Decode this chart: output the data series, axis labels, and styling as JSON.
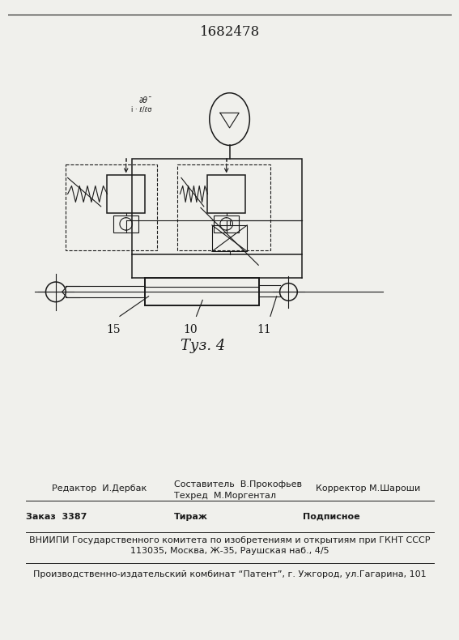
{
  "patent_number": "1682478",
  "editor_line": "Редактор  И.Дербак",
  "composer_line": "Составитель  В.Прокофьев",
  "techred_line": "Техред  М.Моргентал",
  "corrector_line": "Корректор М.Шароши",
  "order_line": "Заказ  3387",
  "tirazh_line": "Тираж",
  "podpisnoe_line": "Подписное",
  "vniipmi_line": "ВНИИПИ Государственного комитета по изобретениям и открытиям при ГКНТ СССР",
  "address_line": "113035, Москва, Ж-35, Раушская наб., 4/5",
  "print_line": "Производственно-издательский комбинат “Патент”, г. Ужгород, ул.Гагарина, 101",
  "bg_color": "#f0f0ec",
  "line_color": "#1a1a1a"
}
